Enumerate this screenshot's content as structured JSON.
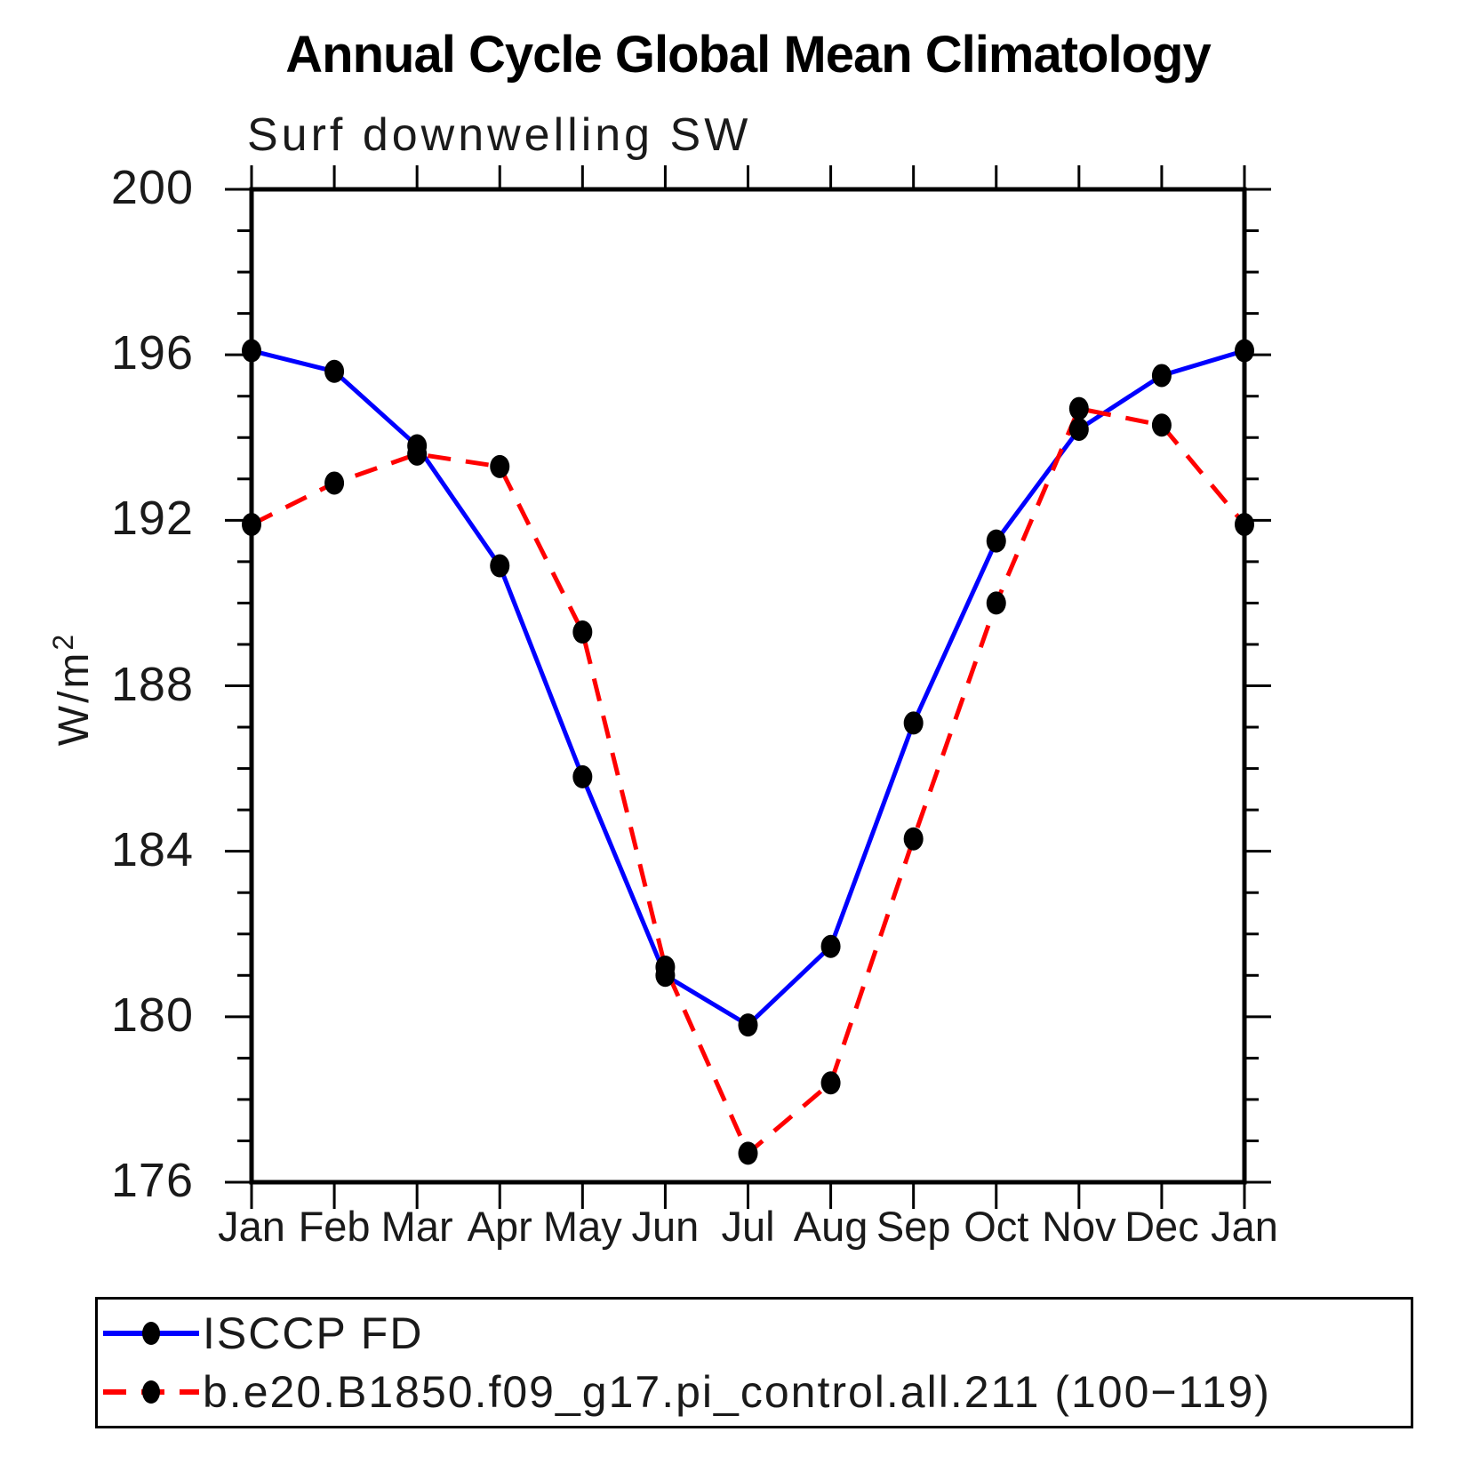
{
  "title": "Annual Cycle Global Mean Climatology",
  "subtitle": "Surf downwelling SW",
  "ylabel": {
    "base": "W/m",
    "exp": "2"
  },
  "chart_data": {
    "type": "line",
    "x_categories": [
      "Jan",
      "Feb",
      "Mar",
      "Apr",
      "May",
      "Jun",
      "Jul",
      "Aug",
      "Sep",
      "Oct",
      "Nov",
      "Dec",
      "Jan"
    ],
    "xlabel": "",
    "ylabel": "W/m2",
    "ylim": [
      176,
      200
    ],
    "ytick_major_step": 4,
    "ytick_minor_step": 1,
    "yticks": [
      176,
      180,
      184,
      188,
      192,
      196,
      200
    ],
    "grid": "off",
    "legend_position": "bottom",
    "marker_color": "#000000",
    "series": [
      {
        "name": "ISCCP FD",
        "color": "#0000ff",
        "line_style": "solid",
        "marker": "filled-circle",
        "values": [
          196.1,
          195.6,
          193.8,
          190.9,
          185.8,
          181.0,
          179.8,
          181.7,
          187.1,
          191.5,
          194.2,
          195.5,
          196.1
        ]
      },
      {
        "name": "b.e20.B1850.f09_g17.pi_control.all.211 (100−119)",
        "color": "#ff0000",
        "line_style": "dashed",
        "marker": "filled-circle",
        "values": [
          191.9,
          192.9,
          193.6,
          193.3,
          189.3,
          181.2,
          176.7,
          178.4,
          184.3,
          190.0,
          194.7,
          194.3,
          191.9
        ]
      }
    ]
  }
}
